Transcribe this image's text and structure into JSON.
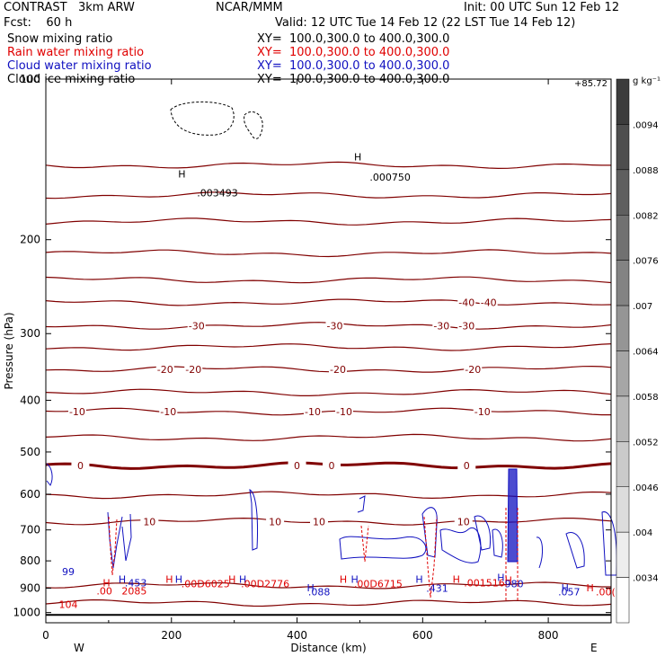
{
  "header": {
    "model": "CONTRAST   3km ARW",
    "org": "NCAR/MMM",
    "init": "Init: 00 UTC Sun 12 Feb 12",
    "fcst": "Fcst:    60 h",
    "valid": "Valid: 12 UTC Tue 14 Feb 12 (22 LST Tue 14 Feb 12)"
  },
  "fields": [
    {
      "name": "Snow mixing ratio",
      "xy": "XY=  100.0,300.0 to 400.0,300.0",
      "color": "#000000"
    },
    {
      "name": "Rain water mixing ratio",
      "xy": "XY=  100.0,300.0 to 400.0,300.0",
      "color": "#e00000"
    },
    {
      "name": "Cloud water mixing ratio",
      "xy": "XY=  100.0,300.0 to 400.0,300.0",
      "color": "#1010c0"
    },
    {
      "name": "Cloud ice mixing ratio",
      "xy": "XY=  100.0,300.0 to 400.0,300.0",
      "color": "#000000"
    }
  ],
  "colorbar": {
    "unit": "g kg⁻¹",
    "top_label": "+85.72",
    "labels": [
      ".0094",
      ".0088",
      ".0082",
      ".0076",
      ".007",
      ".0064",
      ".0058",
      ".0052",
      ".0046",
      ".004",
      ".0034"
    ]
  },
  "chart_data": {
    "type": "contour",
    "xlabel": "Distance (km)",
    "ylabel": "Pressure (hPa)",
    "xlim": [
      0,
      900
    ],
    "ylim": [
      100,
      1045
    ],
    "y_scale": "log",
    "x_ticks": [
      0,
      200,
      400,
      600,
      800
    ],
    "y_ticks": [
      100,
      200,
      300,
      400,
      500,
      600,
      700,
      800,
      900,
      1000
    ],
    "endpoints": {
      "left": "W",
      "right": "E"
    },
    "temperature_color": "#800000",
    "temperature_contours": [
      {
        "p": 145
      },
      {
        "p": 165
      },
      {
        "p": 185
      },
      {
        "p": 212
      },
      {
        "p": 238
      },
      {
        "p": 262,
        "labels": [
          {
            "x": 670,
            "t": "-40"
          },
          {
            "x": 705,
            "t": "-40"
          }
        ]
      },
      {
        "p": 290,
        "labels": [
          {
            "x": 240,
            "t": "-30"
          },
          {
            "x": 460,
            "t": "-30"
          },
          {
            "x": 630,
            "t": "-30"
          },
          {
            "x": 670,
            "t": "-30"
          }
        ]
      },
      {
        "p": 318
      },
      {
        "p": 350,
        "labels": [
          {
            "x": 190,
            "t": "-20"
          },
          {
            "x": 235,
            "t": "-20"
          },
          {
            "x": 465,
            "t": "-20"
          },
          {
            "x": 680,
            "t": "-20"
          }
        ]
      },
      {
        "p": 387
      },
      {
        "p": 420,
        "labels": [
          {
            "x": 50,
            "t": "-10"
          },
          {
            "x": 195,
            "t": "-10"
          },
          {
            "x": 425,
            "t": "-10"
          },
          {
            "x": 475,
            "t": "-10"
          },
          {
            "x": 695,
            "t": "-10"
          }
        ]
      },
      {
        "p": 470
      },
      {
        "p": 530,
        "bold": true,
        "labels": [
          {
            "x": 55,
            "t": "0"
          },
          {
            "x": 400,
            "t": "0"
          },
          {
            "x": 455,
            "t": "0"
          },
          {
            "x": 670,
            "t": "0"
          }
        ]
      },
      {
        "p": 602
      },
      {
        "p": 675,
        "labels": [
          {
            "x": 165,
            "t": "10"
          },
          {
            "x": 365,
            "t": "10"
          },
          {
            "x": 435,
            "t": "10"
          },
          {
            "x": 665,
            "t": "10"
          }
        ]
      },
      {
        "p": 890
      },
      {
        "p": 960
      }
    ],
    "annotations": [
      {
        "x": 40,
        "p": 850,
        "t": "99",
        "color": "#1010c0"
      },
      {
        "x": 35,
        "p": 980,
        "t": "104",
        "color": "#e00000"
      },
      {
        "x": 225,
        "p": 153,
        "t": "H",
        "color": "#000000"
      },
      {
        "x": 255,
        "p": 166,
        "t": ".003493",
        "color": "#000000"
      },
      {
        "x": 505,
        "p": 142,
        "t": "H",
        "color": "#000000"
      },
      {
        "x": 530,
        "p": 155,
        "t": ".000750",
        "color": "#000000"
      },
      {
        "x": 105,
        "p": 893,
        "t": "H",
        "color": "#e00000"
      },
      {
        "x": 95,
        "p": 925,
        "t": ".00",
        "color": "#e00000"
      },
      {
        "x": 135,
        "p": 925,
        "t": "2085",
        "color": "#e00000"
      },
      {
        "x": 130,
        "p": 880,
        "t": "H",
        "color": "#1010c0"
      },
      {
        "x": 140,
        "p": 893,
        "t": ".453",
        "color": "#1010c0"
      },
      {
        "x": 205,
        "p": 880,
        "t": "H",
        "color": "#e00000"
      },
      {
        "x": 220,
        "p": 880,
        "t": "H",
        "color": "#1010c0"
      },
      {
        "x": 230,
        "p": 897,
        "t": ".00D6025",
        "color": "#e00000"
      },
      {
        "x": 305,
        "p": 880,
        "t": "H",
        "color": "#e00000"
      },
      {
        "x": 322,
        "p": 880,
        "t": "H",
        "color": "#1010c0"
      },
      {
        "x": 325,
        "p": 897,
        "t": ".00D2776",
        "color": "#e00000"
      },
      {
        "x": 430,
        "p": 912,
        "t": "H",
        "color": "#1010c0"
      },
      {
        "x": 432,
        "p": 928,
        "t": ".088",
        "color": "#1010c0"
      },
      {
        "x": 482,
        "p": 880,
        "t": "H",
        "color": "#e00000"
      },
      {
        "x": 500,
        "p": 880,
        "t": "H",
        "color": "#1010c0"
      },
      {
        "x": 505,
        "p": 897,
        "t": ".00D6715",
        "color": "#e00000"
      },
      {
        "x": 603,
        "p": 880,
        "t": "H",
        "color": "#1010c0"
      },
      {
        "x": 620,
        "p": 915,
        "t": ".431",
        "color": "#1010c0"
      },
      {
        "x": 662,
        "p": 880,
        "t": "H",
        "color": "#e00000"
      },
      {
        "x": 680,
        "p": 893,
        "t": ".001516",
        "color": "#e00000"
      },
      {
        "x": 733,
        "p": 872,
        "t": "H",
        "color": "#1010c0"
      },
      {
        "x": 745,
        "p": 882,
        "t": "H",
        "color": "#e00000"
      },
      {
        "x": 745,
        "p": 897,
        "t": "980",
        "color": "#1010c0"
      },
      {
        "x": 835,
        "p": 912,
        "t": "H",
        "color": "#1010c0"
      },
      {
        "x": 830,
        "p": 928,
        "t": ".057",
        "color": "#1010c0"
      },
      {
        "x": 875,
        "p": 912,
        "t": "H",
        "color": "#e00000"
      },
      {
        "x": 890,
        "p": 928,
        "t": ".00(",
        "color": "#e00000"
      }
    ]
  }
}
